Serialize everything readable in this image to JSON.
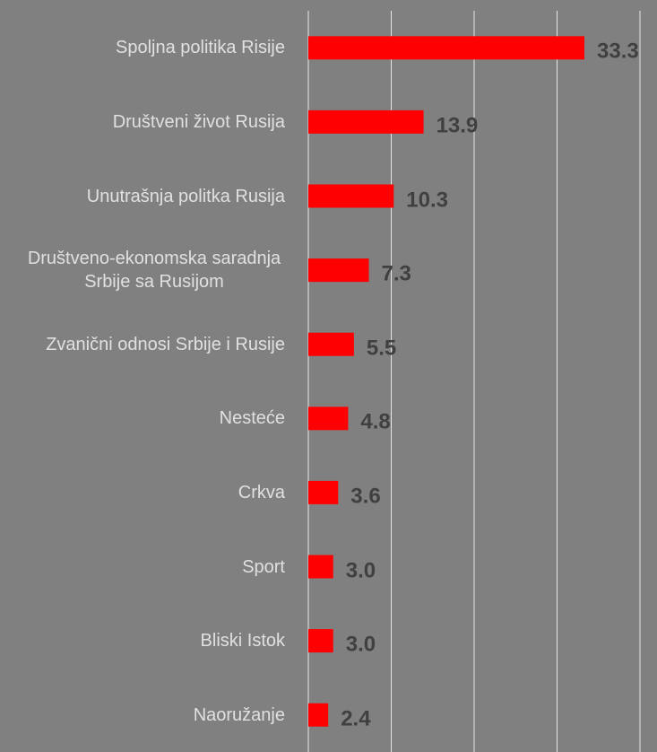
{
  "chart_data": {
    "type": "bar",
    "orientation": "horizontal",
    "categories": [
      "Spoljna politika Risije",
      "Društveni život Rusija",
      "Unutrašnja politka Rusija",
      "Društveno-ekonomska saradnja Srbije sa Rusijom",
      "Zvanični odnosi Srbije i Rusije",
      "Nesteće",
      "Crkva",
      "Sport",
      "Bliski Istok",
      "Naoružanje"
    ],
    "values": [
      33.3,
      13.9,
      10.3,
      7.3,
      5.5,
      4.8,
      3.6,
      3.0,
      3.0,
      2.4
    ],
    "value_labels": [
      "33.3",
      "13.9",
      "10.3",
      "7.3",
      "5.5",
      "4.8",
      "3.6",
      "3.0",
      "3.0",
      "2.4"
    ],
    "color": "#ff0000",
    "xlim": [
      0,
      40
    ],
    "xticks": [
      0,
      10,
      20,
      30,
      40
    ],
    "grid": true
  }
}
